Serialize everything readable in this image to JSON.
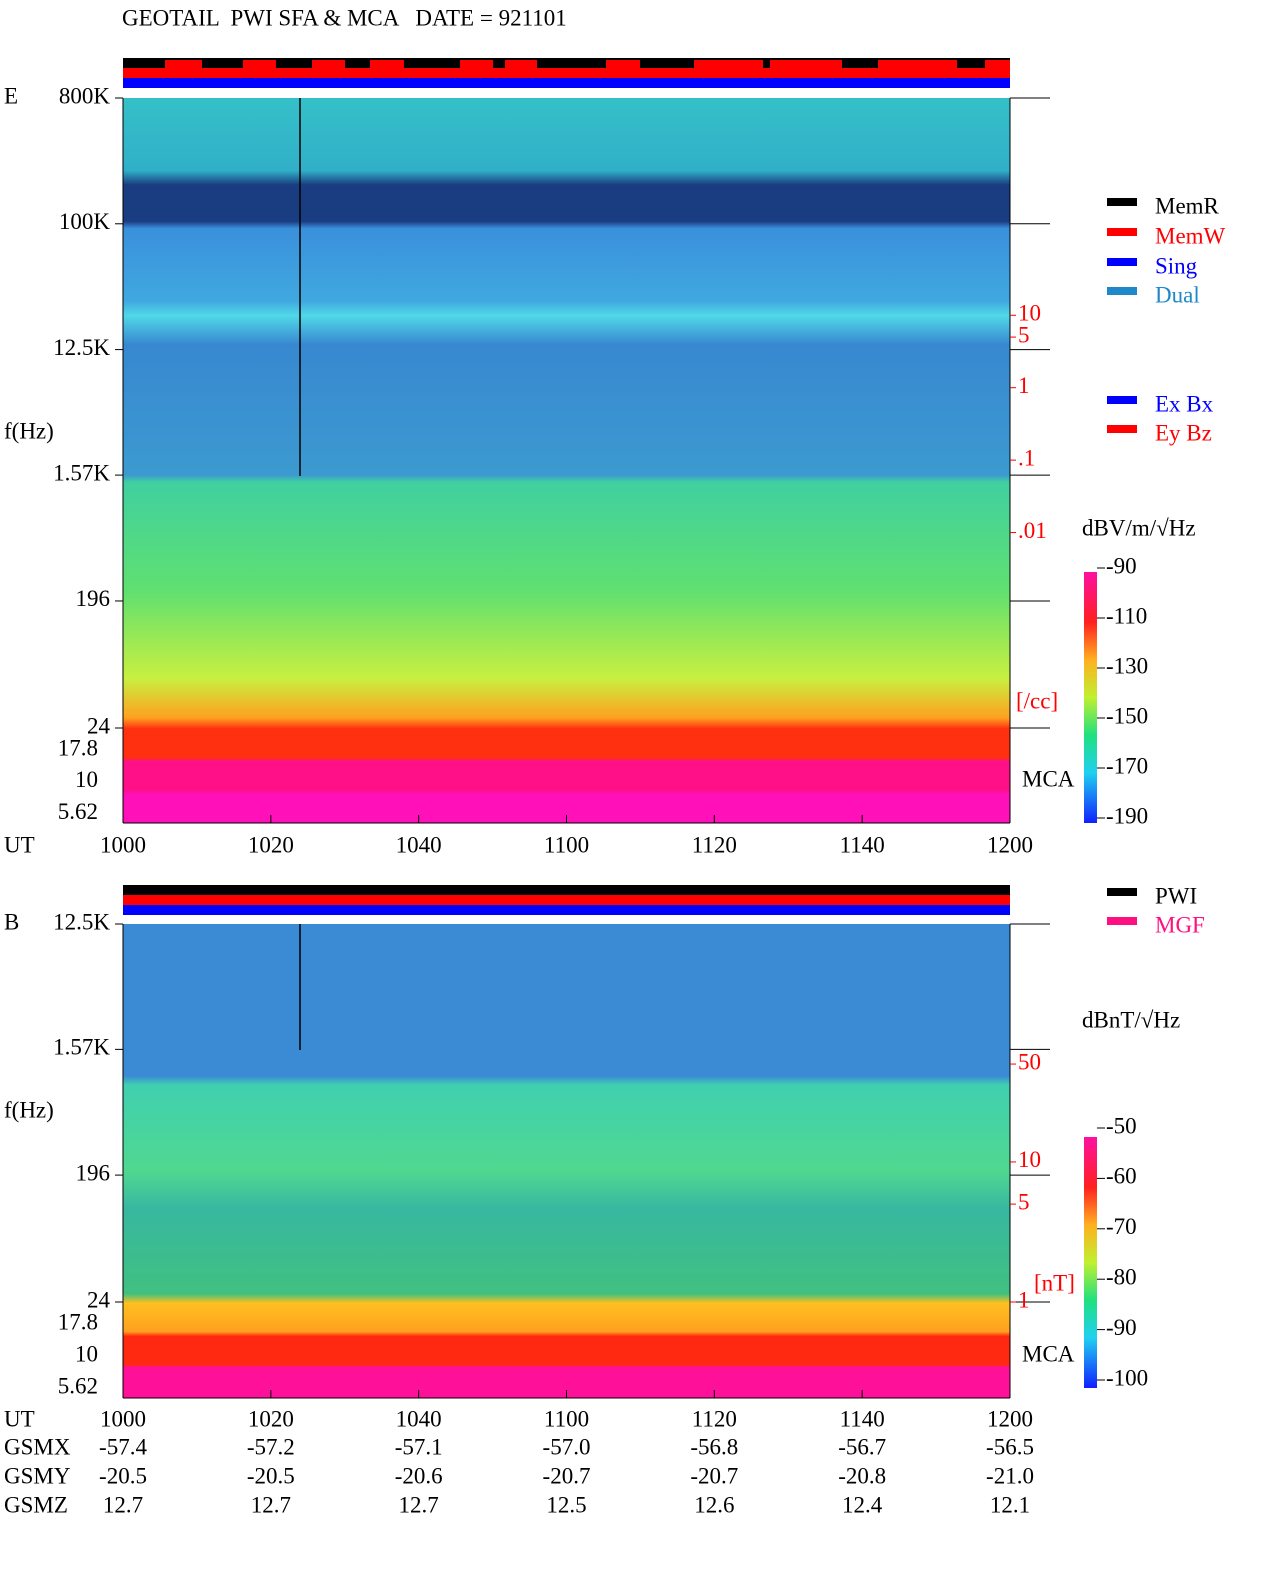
{
  "title": "GEOTAIL  PWI SFA & MCA   DATE = 921101",
  "chart_data": [
    {
      "type": "spectrogram",
      "component": "E",
      "ylabel": "f(Hz)",
      "log_scale": true,
      "ylim": [
        24,
        800000
      ],
      "yticks": [
        {
          "value": 800000,
          "label": "800K"
        },
        {
          "value": 100000,
          "label": "100K"
        },
        {
          "value": 12500,
          "label": "12.5K"
        },
        {
          "value": 1570,
          "label": "1.57K"
        },
        196,
        24
      ],
      "mca_ticks": [
        17.8,
        10,
        5.62
      ],
      "mca_label": "MCA",
      "xlabel": "UT",
      "xticks": [
        "1000",
        "1020",
        "1040",
        "1100",
        "1120",
        "1140",
        "1200"
      ],
      "y2lim": [
        2e-05,
        10000
      ],
      "y2color": "#ff0000",
      "y2ticks": [
        10,
        5,
        1,
        {
          "value": 0.1,
          "label": ".1"
        },
        {
          "value": 0.01,
          "label": ".01"
        }
      ],
      "y2label": "[/cc]",
      "colorbar": {
        "label": "dBV/m/√Hz",
        "lim": [
          -190,
          -90
        ],
        "ticks": [
          -90,
          -110,
          -130,
          -150,
          -170,
          -190
        ]
      },
      "legend": [
        {
          "name": "MemR",
          "color": "#000000"
        },
        {
          "name": "MemW",
          "color": "#ff0000"
        },
        {
          "name": "Sing",
          "color": "#0000ff"
        },
        {
          "name": "Dual",
          "color": "#1e88c8"
        },
        {
          "name": "Ex Bx",
          "color": "#0000ff"
        },
        {
          "name": "Ey Bz",
          "color": "#ff0000"
        }
      ]
    },
    {
      "type": "spectrogram",
      "component": "B",
      "ylabel": "f(Hz)",
      "log_scale": true,
      "ylim": [
        24,
        12500
      ],
      "yticks": [
        {
          "value": 12500,
          "label": "12.5K"
        },
        {
          "value": 1570,
          "label": "1.57K"
        },
        196,
        24
      ],
      "mca_ticks": [
        17.8,
        10,
        5.62
      ],
      "mca_label": "MCA",
      "xlabel": "UT",
      "xticks": [
        "1000",
        "1020",
        "1040",
        "1100",
        "1120",
        "1140",
        "1200"
      ],
      "y2lim": [
        1,
        500
      ],
      "y2color": "#ff0000",
      "y2ticks": [
        50,
        10,
        5,
        1
      ],
      "y2label": "[nT]",
      "colorbar": {
        "label": "dBnT/√Hz",
        "lim": [
          -100,
          -50
        ],
        "ticks": [
          -50,
          -60,
          -70,
          -80,
          -90,
          -100
        ]
      },
      "legend": [
        {
          "name": "PWI",
          "color": "#000000"
        },
        {
          "name": "MGF",
          "color": "#ff1080"
        }
      ]
    }
  ],
  "orbit": {
    "labels": [
      "GSMX",
      "GSMY",
      "GSMZ"
    ],
    "rows": [
      [
        "-57.4",
        "-57.2",
        "-57.1",
        "-57.0",
        "-56.8",
        "-56.7",
        "-56.5"
      ],
      [
        "-20.5",
        "-20.5",
        "-20.6",
        "-20.7",
        "-20.7",
        "-20.8",
        "-21.0"
      ],
      [
        "12.7",
        "12.7",
        "12.7",
        "12.5",
        "12.6",
        "12.4",
        "12.1"
      ]
    ]
  }
}
